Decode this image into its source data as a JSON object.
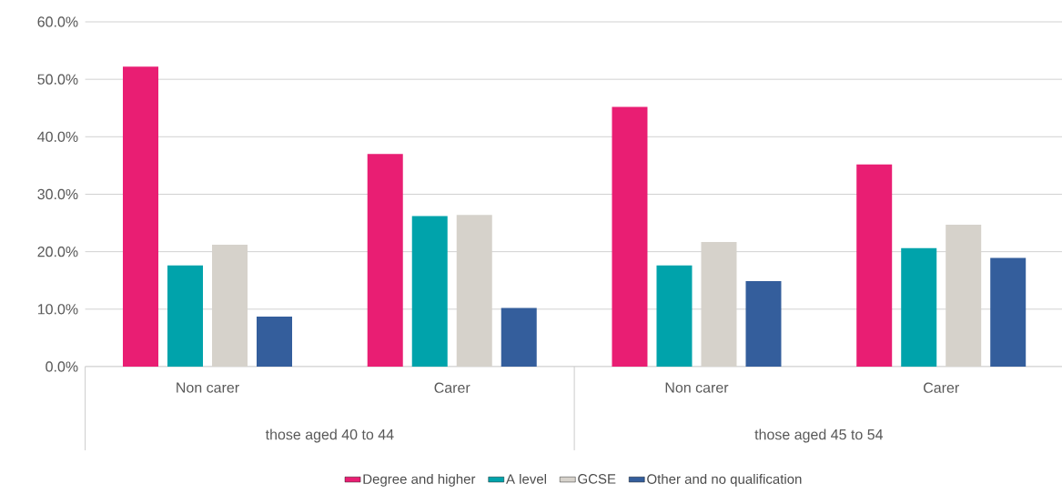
{
  "chart_data": {
    "type": "bar",
    "categories": [
      "Non carer",
      "Carer",
      "Non carer",
      "Carer"
    ],
    "series": [
      {
        "name": "Degree and higher",
        "color": "#e91e73",
        "values": [
          52.2,
          37.0,
          45.2,
          35.2
        ]
      },
      {
        "name": "A level",
        "color": "#00a3ab",
        "values": [
          17.6,
          26.2,
          17.6,
          20.6
        ]
      },
      {
        "name": "GCSE",
        "color": "#d6d2cb",
        "values": [
          21.2,
          26.4,
          21.7,
          24.7
        ]
      },
      {
        "name": "Other and no qualification",
        "color": "#345e9c",
        "values": [
          8.7,
          10.2,
          14.9,
          18.9
        ]
      }
    ],
    "annotations": [
      "those aged 40 to 44",
      "those aged 45 to 54"
    ],
    "ylim": [
      0,
      60
    ],
    "yticks": [
      {
        "value": 0,
        "label": "0.0%"
      },
      {
        "value": 10,
        "label": "10.0%"
      },
      {
        "value": 20,
        "label": "20.0%"
      },
      {
        "value": 30,
        "label": "30.0%"
      },
      {
        "value": 40,
        "label": "40.0%"
      },
      {
        "value": 50,
        "label": "50.0%"
      },
      {
        "value": 60,
        "label": "60.0%"
      }
    ],
    "grid": "y",
    "legend": "bottom"
  }
}
